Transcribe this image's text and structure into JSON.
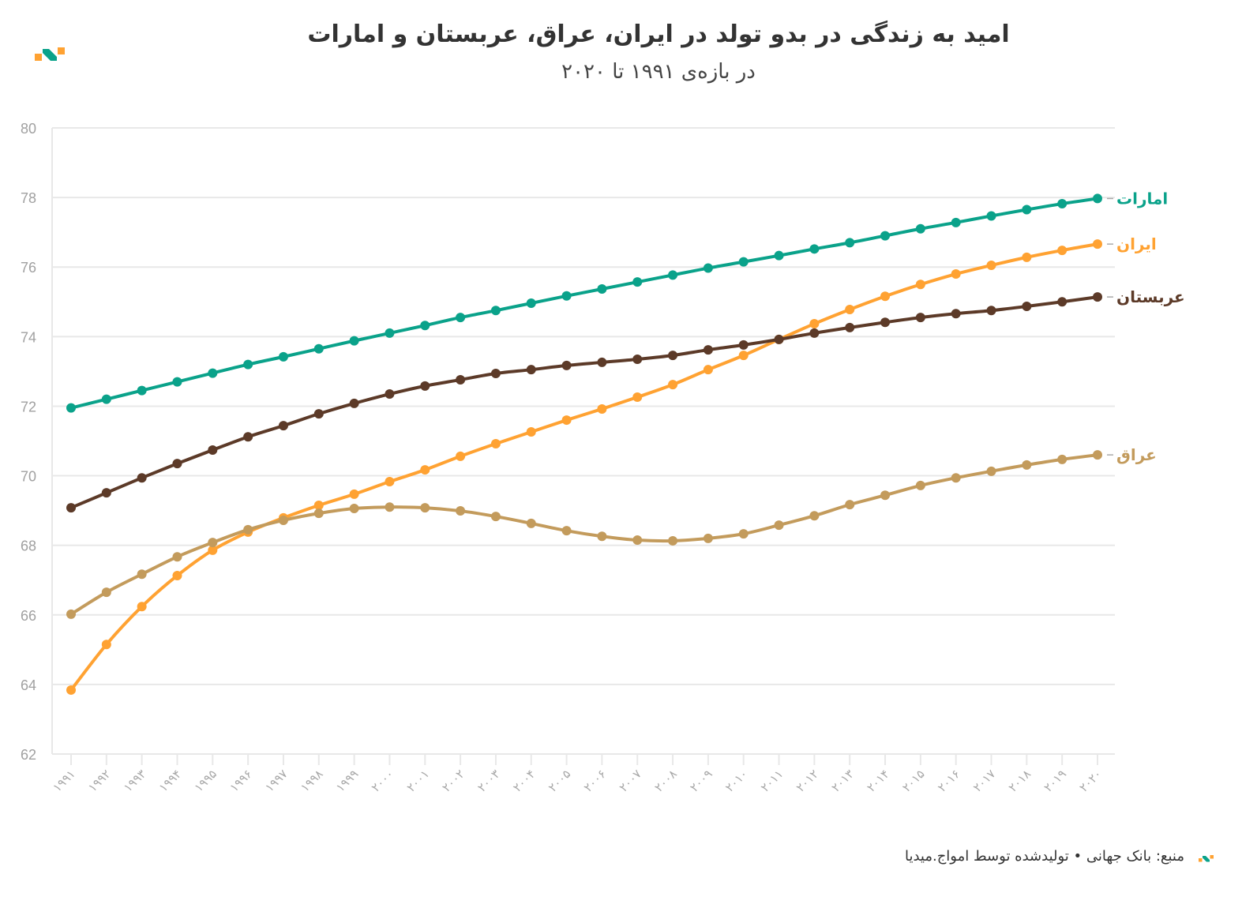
{
  "header": {
    "title": "امید به زندگی در بدو تولد در ایران، عراق، عربستان و امارات",
    "subtitle": "در بازه‌ی ۱۹۹۱ تا ۲۰۲۰"
  },
  "footer": {
    "text": "منبع: بانک جهانی • تولیدشده توسط امواج.میدیا"
  },
  "chart_data": {
    "type": "line",
    "title": "امید به زندگی در بدو تولد در ایران، عراق، عربستان و امارات",
    "subtitle": "در بازه‌ی ۱۹۹۱ تا ۲۰۲۰",
    "xlabel": "",
    "ylabel": "",
    "ylim": [
      62,
      80
    ],
    "yticks": [
      "62",
      "64",
      "66",
      "68",
      "70",
      "72",
      "74",
      "76",
      "78",
      "80"
    ],
    "x": [
      "۱۹۹۱",
      "۱۹۹۲",
      "۱۹۹۳",
      "۱۹۹۴",
      "۱۹۹۵",
      "۱۹۹۶",
      "۱۹۹۷",
      "۱۹۹۸",
      "۱۹۹۹",
      "۲۰۰۰",
      "۲۰۰۱",
      "۲۰۰۲",
      "۲۰۰۳",
      "۲۰۰۴",
      "۲۰۰۵",
      "۲۰۰۶",
      "۲۰۰۷",
      "۲۰۰۸",
      "۲۰۰۹",
      "۲۰۱۰",
      "۲۰۱۱",
      "۲۰۱۲",
      "۲۰۱۳",
      "۲۰۱۴",
      "۲۰۱۵",
      "۲۰۱۶",
      "۲۰۱۷",
      "۲۰۱۸",
      "۲۰۱۹",
      "۲۰۲۰"
    ],
    "grid": true,
    "legend": "right-end-labels",
    "series": [
      {
        "name": "امارات",
        "color": "#0aa28a",
        "values": [
          71.95,
          72.2,
          72.45,
          72.7,
          72.95,
          73.2,
          73.42,
          73.65,
          73.88,
          74.1,
          74.32,
          74.55,
          74.75,
          74.96,
          75.17,
          75.37,
          75.57,
          75.77,
          75.97,
          76.15,
          76.33,
          76.52,
          76.7,
          76.9,
          77.1,
          77.28,
          77.47,
          77.65,
          77.82,
          77.97
        ]
      },
      {
        "name": "ایران",
        "color": "#ffa232",
        "values": [
          63.84,
          65.15,
          66.24,
          67.13,
          67.86,
          68.38,
          68.79,
          69.15,
          69.47,
          69.83,
          70.17,
          70.56,
          70.92,
          71.26,
          71.6,
          71.92,
          72.26,
          72.62,
          73.05,
          73.46,
          73.92,
          74.37,
          74.78,
          75.16,
          75.5,
          75.8,
          76.05,
          76.28,
          76.48,
          76.66
        ]
      },
      {
        "name": "عربستان",
        "color": "#5c3a28",
        "values": [
          69.08,
          69.51,
          69.94,
          70.35,
          70.74,
          71.12,
          71.44,
          71.78,
          72.08,
          72.35,
          72.58,
          72.76,
          72.94,
          73.05,
          73.17,
          73.26,
          73.35,
          73.46,
          73.62,
          73.76,
          73.92,
          74.1,
          74.26,
          74.41,
          74.55,
          74.66,
          74.75,
          74.87,
          75.0,
          75.14
        ]
      },
      {
        "name": "عراق",
        "color": "#c39b5c",
        "values": [
          66.02,
          66.65,
          67.17,
          67.67,
          68.08,
          68.45,
          68.72,
          68.92,
          69.06,
          69.1,
          69.08,
          68.99,
          68.83,
          68.63,
          68.42,
          68.26,
          68.15,
          68.13,
          68.2,
          68.33,
          68.58,
          68.85,
          69.17,
          69.44,
          69.72,
          69.94,
          70.13,
          70.31,
          70.47,
          70.6
        ]
      }
    ]
  }
}
